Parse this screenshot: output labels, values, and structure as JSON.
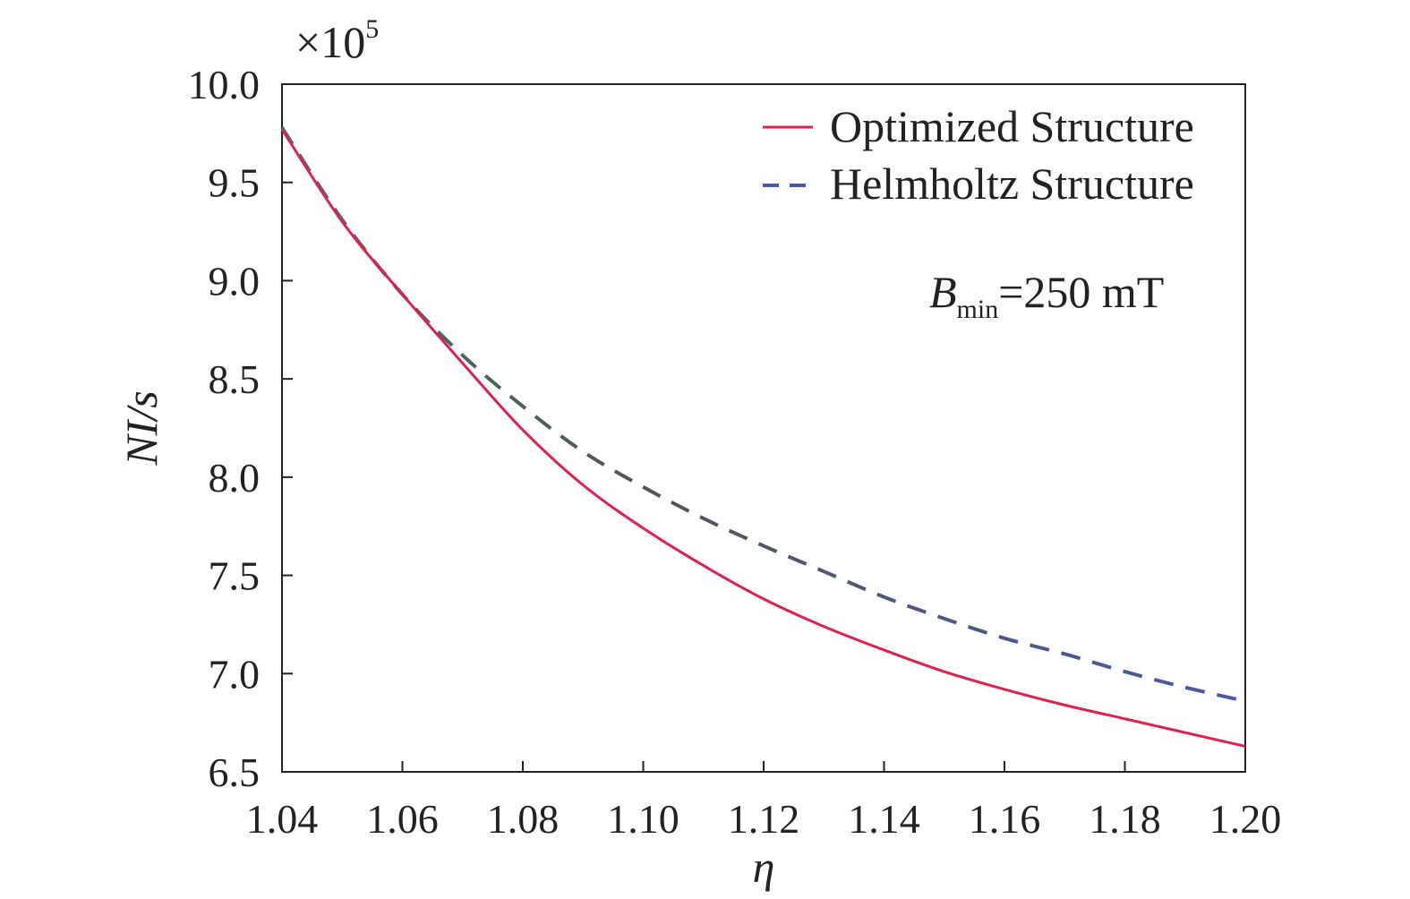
{
  "chart_data": {
    "type": "line",
    "xlabel": "η",
    "ylabel": "NI/s",
    "y_multiplier": "×10",
    "y_multiplier_exp": "5",
    "xlim": [
      1.04,
      1.2
    ],
    "ylim": [
      6.5,
      10.0
    ],
    "x_ticks": [
      "1.04",
      "1.06",
      "1.08",
      "1.10",
      "1.12",
      "1.14",
      "1.16",
      "1.18",
      "1.20"
    ],
    "y_ticks": [
      "6.5",
      "7.0",
      "7.5",
      "8.0",
      "8.5",
      "9.0",
      "9.5",
      "10.0"
    ],
    "grid": false,
    "legend_position": "top-right",
    "annotation": {
      "symbol": "B",
      "subscript": "min",
      "text": "=250 mT"
    },
    "x": [
      1.04,
      1.05,
      1.06,
      1.07,
      1.08,
      1.09,
      1.1,
      1.11,
      1.12,
      1.13,
      1.14,
      1.15,
      1.16,
      1.17,
      1.18,
      1.19,
      1.2
    ],
    "series": [
      {
        "name": "Optimized Structure",
        "color": "#e0204e",
        "dash": "solid",
        "values": [
          9.77,
          9.3,
          8.93,
          8.58,
          8.24,
          7.96,
          7.74,
          7.55,
          7.38,
          7.24,
          7.12,
          7.01,
          6.92,
          6.84,
          6.77,
          6.7,
          6.63
        ]
      },
      {
        "name": "Helmholtz Structure",
        "color": "#4a5aa8",
        "dash": "dashed",
        "values": [
          9.78,
          9.31,
          8.93,
          8.62,
          8.36,
          8.13,
          7.95,
          7.79,
          7.65,
          7.52,
          7.39,
          7.28,
          7.18,
          7.1,
          7.01,
          6.93,
          6.86
        ]
      }
    ]
  }
}
